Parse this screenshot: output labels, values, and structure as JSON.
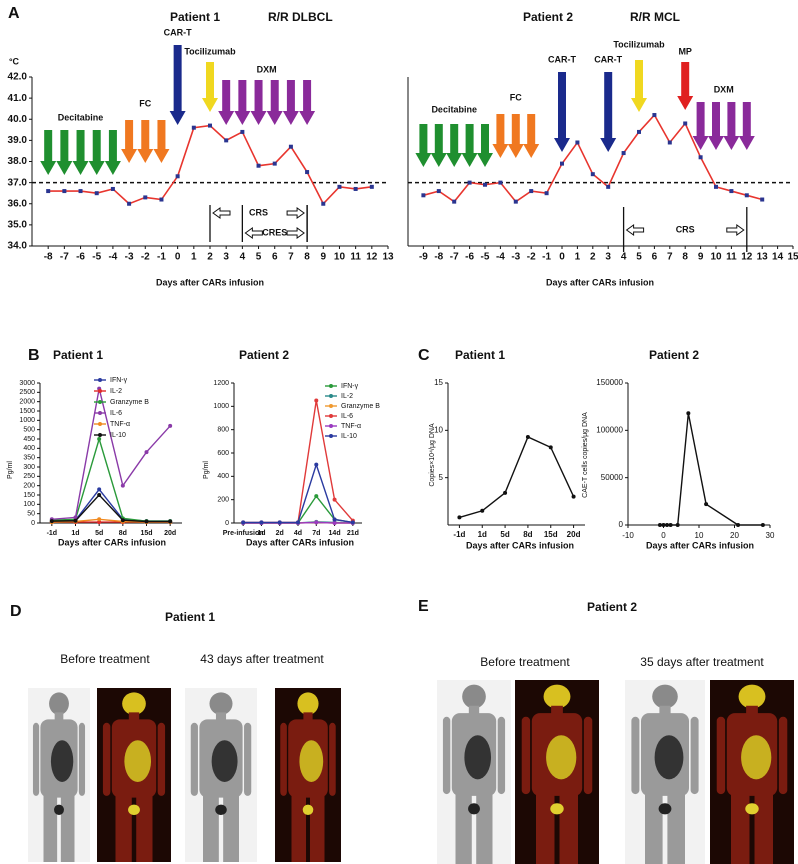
{
  "chart_data": [
    {
      "type": "line",
      "panel": "A",
      "title": "Patient 1",
      "subtitle": "R/R DLBCL",
      "ylabel": "°C",
      "xlabel": "Days after CARs infusion",
      "x": [
        -8,
        -7,
        -6,
        -5,
        -4,
        -3,
        -2,
        -1,
        0,
        1,
        2,
        3,
        4,
        5,
        6,
        7,
        8,
        9,
        10,
        11,
        12
      ],
      "values": [
        36.6,
        36.6,
        36.6,
        36.5,
        36.7,
        36.0,
        36.3,
        36.2,
        37.3,
        39.6,
        39.7,
        39.0,
        39.4,
        37.8,
        37.9,
        38.7,
        37.5,
        36.0,
        36.8,
        36.7,
        36.8
      ],
      "color": "#e8352e",
      "marker_color": "#2a3590",
      "xlim": [
        -9,
        13
      ],
      "xticks": [
        -8,
        -7,
        -6,
        -5,
        -4,
        -3,
        -2,
        -1,
        0,
        1,
        2,
        3,
        4,
        5,
        6,
        7,
        8,
        9,
        10,
        11,
        12,
        13
      ],
      "ylim": [
        34,
        42
      ],
      "yticks": [
        {
          "value": 34,
          "label": "34.0"
        },
        {
          "value": 35,
          "label": "35.0"
        },
        {
          "value": 36,
          "label": "36.0"
        },
        {
          "value": 37,
          "label": "37.0"
        },
        {
          "value": 38,
          "label": "38.0"
        },
        {
          "value": 39,
          "label": "39.0"
        },
        {
          "value": 40,
          "label": "40.0"
        },
        {
          "value": 41,
          "label": "41.0"
        },
        {
          "value": 42,
          "label": "42.0"
        }
      ],
      "threshold": 37,
      "arrows": [
        {
          "label": "Decitabine",
          "days": [
            -8,
            -7,
            -6,
            -5,
            -4
          ],
          "color": "#1f8f2f"
        },
        {
          "label": "FC",
          "days": [
            -3,
            -2,
            -1
          ],
          "color": "#f07820"
        },
        {
          "label": "CAR-T",
          "days": [
            0
          ],
          "color": "#1a2a8c"
        },
        {
          "label": "Tocilizumab",
          "days": [
            2
          ],
          "color": "#f0d820"
        },
        {
          "label": "DXM",
          "days": [
            3,
            4,
            5,
            6,
            7,
            8
          ],
          "color": "#8a2a9a"
        }
      ],
      "brackets": [
        {
          "label": "CRS",
          "from": 2,
          "to": 8
        },
        {
          "label": "CRES",
          "from": 4,
          "to": 8
        }
      ]
    },
    {
      "type": "line",
      "title": "Patient 2",
      "subtitle": "R/R MCL",
      "xlabel": "Days after CARs infusion",
      "x": [
        -9,
        -8,
        -7,
        -6,
        -5,
        -4,
        -3,
        -2,
        -1,
        0,
        1,
        2,
        3,
        4,
        5,
        6,
        7,
        8,
        9,
        10,
        11,
        12,
        13
      ],
      "values": [
        36.4,
        36.6,
        36.1,
        37.0,
        36.9,
        37.0,
        36.1,
        36.6,
        36.5,
        37.9,
        38.9,
        37.4,
        36.8,
        38.4,
        39.4,
        40.2,
        38.9,
        39.8,
        38.2,
        36.8,
        36.6,
        36.4,
        36.2
      ],
      "color": "#e8352e",
      "marker_color": "#2a3590",
      "xlim": [
        -10,
        15
      ],
      "xticks": [
        -9,
        -8,
        -7,
        -6,
        -5,
        -4,
        -3,
        -2,
        -1,
        0,
        1,
        2,
        3,
        4,
        5,
        6,
        7,
        8,
        9,
        10,
        11,
        12,
        13,
        14,
        15
      ],
      "ylim": [
        34,
        42
      ],
      "threshold": 37,
      "arrows": [
        {
          "label": "Decitabine",
          "days": [
            -9,
            -8,
            -7,
            -6,
            -5
          ],
          "color": "#1f8f2f"
        },
        {
          "label": "FC",
          "days": [
            -4,
            -3,
            -2
          ],
          "color": "#f07820"
        },
        {
          "label": "CAR-T",
          "days": [
            0
          ],
          "color": "#1a2a8c"
        },
        {
          "label": "CAR-T",
          "days": [
            3
          ],
          "color": "#1a2a8c"
        },
        {
          "label": "Tocilizumab",
          "days": [
            5
          ],
          "color": "#f0d820"
        },
        {
          "label": "MP",
          "days": [
            8
          ],
          "color": "#e02020"
        },
        {
          "label": "DXM",
          "days": [
            9,
            10,
            11,
            12
          ],
          "color": "#8a2a9a"
        }
      ],
      "brackets": [
        {
          "label": "CRS",
          "from": 4,
          "to": 12
        }
      ]
    },
    {
      "type": "line",
      "panel": "B",
      "title": "Patient 1",
      "ylabel": "Pg/ml",
      "xlabel": "Days after CARs infusion",
      "categories": [
        "-1d",
        "1d",
        "5d",
        "8d",
        "15d",
        "20d"
      ],
      "broken_axis": true,
      "ylim": [
        0,
        3000
      ],
      "yticks": [
        0,
        50,
        100,
        150,
        200,
        250,
        300,
        350,
        400,
        450,
        500,
        1000,
        1500,
        2000,
        2500,
        3000
      ],
      "series": [
        {
          "name": "IFN-γ",
          "color": "#2a3aa0",
          "values": [
            10,
            15,
            180,
            20,
            10,
            10
          ]
        },
        {
          "name": "IL-2",
          "color": "#e02a2a",
          "values": [
            5,
            5,
            5,
            5,
            5,
            5
          ]
        },
        {
          "name": "Granzyme B",
          "color": "#2a9a3a",
          "values": [
            15,
            20,
            450,
            25,
            10,
            10
          ]
        },
        {
          "name": "IL-6",
          "color": "#8a3aa8",
          "values": [
            20,
            30,
            2700,
            200,
            380,
            700
          ]
        },
        {
          "name": "TNF-α",
          "color": "#f08a20",
          "values": [
            5,
            8,
            20,
            8,
            5,
            5
          ]
        },
        {
          "name": "IL-10",
          "color": "#111111",
          "values": [
            10,
            12,
            150,
            15,
            8,
            8
          ]
        }
      ]
    },
    {
      "type": "line",
      "title": "Patient 2",
      "ylabel": "Pg/ml",
      "xlabel": "Days after CARs infusion",
      "categories": [
        "Pre-infusion",
        "1d",
        "2d",
        "4d",
        "7d",
        "14d",
        "21d"
      ],
      "ylim": [
        0,
        1200
      ],
      "yticks": [
        0,
        200,
        400,
        600,
        800,
        1000,
        1200
      ],
      "series": [
        {
          "name": "IFN-γ",
          "color": "#2a9a3a",
          "values": [
            0,
            0,
            0,
            0,
            230,
            30,
            5
          ]
        },
        {
          "name": "IL-2",
          "color": "#2a8a8a",
          "values": [
            0,
            0,
            0,
            0,
            10,
            5,
            0
          ]
        },
        {
          "name": "Granzyme B",
          "color": "#f09a30",
          "values": [
            0,
            0,
            0,
            0,
            5,
            0,
            0
          ]
        },
        {
          "name": "IL-6",
          "color": "#e03a3a",
          "values": [
            5,
            5,
            5,
            5,
            1050,
            200,
            20
          ]
        },
        {
          "name": "TNF-α",
          "color": "#9a3ac0",
          "values": [
            0,
            0,
            0,
            0,
            5,
            0,
            0
          ]
        },
        {
          "name": "IL-10",
          "color": "#2a3aa0",
          "values": [
            5,
            5,
            5,
            5,
            500,
            30,
            5
          ]
        }
      ]
    },
    {
      "type": "line",
      "panel": "C",
      "title": "Patient 1",
      "ylabel": "Copies×10⁴/μg DNA",
      "xlabel": "Days after CARs infusion",
      "categories": [
        "-1d",
        "1d",
        "5d",
        "8d",
        "15d",
        "20d"
      ],
      "values": [
        0.8,
        1.5,
        3.4,
        9.3,
        8.2,
        3.0
      ],
      "color": "#111111",
      "ylim": [
        0,
        15
      ],
      "yticks": [
        5,
        10,
        15
      ]
    },
    {
      "type": "line",
      "title": "Patient 2",
      "ylabel": "CAE-T cells copies/μg DNA",
      "xlabel": "Days after CARs infusion",
      "x": [
        -1,
        0,
        1,
        2,
        4,
        7,
        12,
        21,
        28
      ],
      "values": [
        0,
        0,
        0,
        0,
        0,
        118000,
        22000,
        0,
        0
      ],
      "color": "#111111",
      "xlim": [
        -10,
        30
      ],
      "xticks": [
        -10,
        0,
        10,
        20,
        30
      ],
      "ylim": [
        0,
        150000
      ],
      "yticks": [
        0,
        50000,
        100000,
        150000
      ]
    }
  ],
  "images": [
    {
      "panel": "D",
      "title": "Patient 1",
      "captions": [
        "Before treatment",
        "43 days after treatment"
      ]
    },
    {
      "panel": "E",
      "title": "Patient 2",
      "captions": [
        "Before treatment",
        "35 days after treatment"
      ]
    }
  ]
}
